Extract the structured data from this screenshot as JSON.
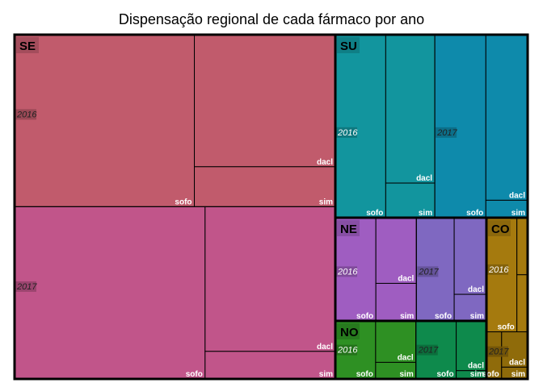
{
  "chart_data": {
    "type": "treemap",
    "title": "Dispensação regional de cada fármaco por ano",
    "hierarchy": [
      "região",
      "ano",
      "fármaco"
    ],
    "regions": [
      {
        "name": "SE",
        "color": "#C15B6C",
        "years": [
          {
            "year": "2016",
            "color": "#C15B6C",
            "drugs": [
              {
                "name": "sofo",
                "value": 56.0
              },
              {
                "name": "dacl",
                "value": 33.7
              },
              {
                "name": "sim",
                "value": 10.2
              }
            ]
          },
          {
            "year": "2017",
            "color": "#C1558A",
            "drugs": [
              {
                "name": "sofo",
                "value": 59.4
              },
              {
                "name": "dacl",
                "value": 34.1
              },
              {
                "name": "sim",
                "value": 6.5
              }
            ]
          }
        ]
      },
      {
        "name": "SU",
        "color": "#12959E",
        "years": [
          {
            "year": "2016",
            "color": "#12959E",
            "drugs": [
              {
                "name": "sofo",
                "value": 7.6
              },
              {
                "name": "dacl",
                "value": 6.0
              },
              {
                "name": "sim",
                "value": 1.4
              }
            ]
          },
          {
            "year": "2017",
            "color": "#0E8AAB",
            "drugs": [
              {
                "name": "sofo",
                "value": 7.7
              },
              {
                "name": "dacl",
                "value": 5.7
              },
              {
                "name": "sim",
                "value": 0.6
              }
            ]
          }
        ]
      },
      {
        "name": "NE",
        "color": "#9F5DC1",
        "years": [
          {
            "year": "2016",
            "color": "#9F5DC1",
            "drugs": [
              {
                "name": "sofo",
                "value": 4.4
              },
              {
                "name": "dacl",
                "value": 2.8
              },
              {
                "name": "sim",
                "value": 1.6
              }
            ]
          },
          {
            "year": "2017",
            "color": "#7F68C1",
            "drugs": [
              {
                "name": "sofo",
                "value": 4.1
              },
              {
                "name": "dacl",
                "value": 2.6
              },
              {
                "name": "sim",
                "value": 0.9
              }
            ]
          }
        ]
      },
      {
        "name": "NO",
        "color": "#2E9023",
        "years": [
          {
            "year": "2016",
            "color": "#2E9023",
            "drugs": [
              {
                "name": "sofo",
                "value": 2.8
              },
              {
                "name": "dacl",
                "value": 2.0
              },
              {
                "name": "sim",
                "value": 0.8
              }
            ]
          },
          {
            "year": "2017",
            "color": "#0E8A4C",
            "drugs": [
              {
                "name": "sofo",
                "value": 2.8
              },
              {
                "name": "dacl",
                "value": 1.8
              },
              {
                "name": "sim",
                "value": 0.3
              }
            ]
          }
        ]
      },
      {
        "name": "CO",
        "color": "#A57A0E",
        "years": [
          {
            "year": "2016",
            "color": "#A57A0E",
            "drugs": [
              {
                "name": "sofo",
                "value": 3.4
              },
              {
                "name": "dacl",
                "value": 0.6
              },
              {
                "name": "sim",
                "value": 0.6
              }
            ]
          },
          {
            "year": "2017",
            "color": "#8F6B0A",
            "drugs": [
              {
                "name": "sofo",
                "value": 0.7
              },
              {
                "name": "dacl",
                "value": 0.9
              },
              {
                "name": "sim",
                "value": 0.3
              }
            ]
          }
        ]
      }
    ]
  }
}
